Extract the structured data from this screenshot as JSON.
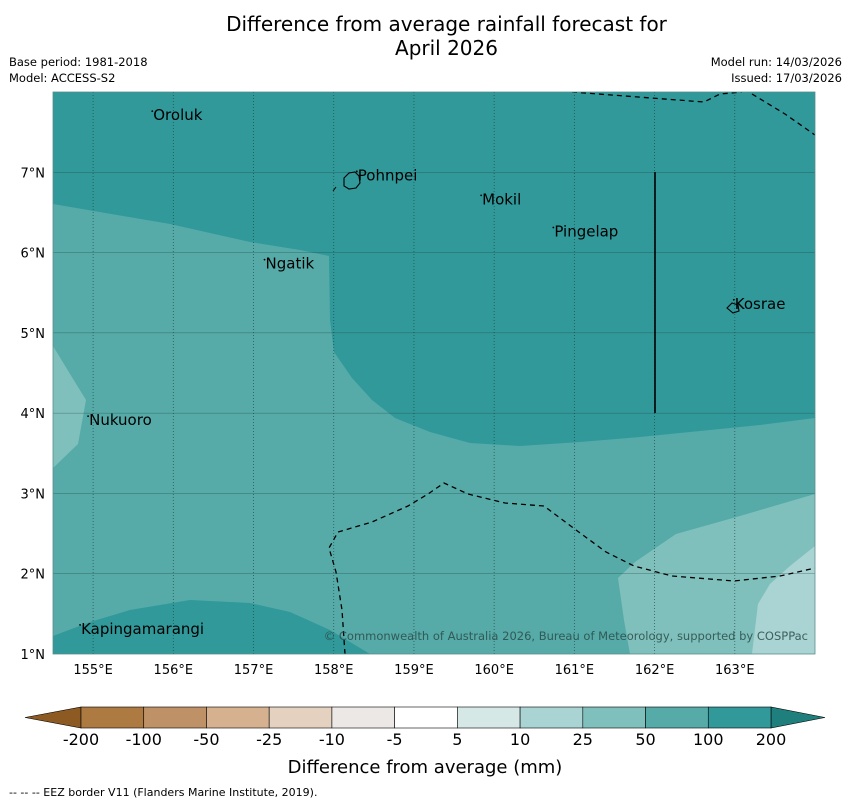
{
  "title": {
    "line1": "Difference from average rainfall forecast for",
    "line2": "April 2026"
  },
  "meta": {
    "base_period": "Base period: 1981-2018",
    "model": "Model: ACCESS-S2",
    "model_run": "Model run: 14/03/2026",
    "issued": "Issued: 17/03/2026"
  },
  "map": {
    "lon_range": [
      154.5,
      164.0
    ],
    "lat_range": [
      1.0,
      8.0
    ],
    "lon_ticks": [
      {
        "value": 155,
        "label": "155°E"
      },
      {
        "value": 156,
        "label": "156°E"
      },
      {
        "value": 157,
        "label": "157°E"
      },
      {
        "value": 158,
        "label": "158°E"
      },
      {
        "value": 159,
        "label": "159°E"
      },
      {
        "value": 160,
        "label": "160°E"
      },
      {
        "value": 161,
        "label": "161°E"
      },
      {
        "value": 162,
        "label": "162°E"
      },
      {
        "value": 163,
        "label": "163°E"
      }
    ],
    "lat_ticks": [
      {
        "value": 1,
        "label": "1°N"
      },
      {
        "value": 2,
        "label": "2°N"
      },
      {
        "value": 3,
        "label": "3°N"
      },
      {
        "value": 4,
        "label": "4°N"
      },
      {
        "value": 5,
        "label": "5°N"
      },
      {
        "value": 6,
        "label": "6°N"
      },
      {
        "value": 7,
        "label": "7°N"
      }
    ],
    "places": [
      {
        "name": "Oroluk",
        "lon": 155.75,
        "lat": 7.65
      },
      {
        "name": "Pohnpei",
        "lon": 158.3,
        "lat": 6.9
      },
      {
        "name": "Mokil",
        "lon": 159.85,
        "lat": 6.6
      },
      {
        "name": "Pingelap",
        "lon": 160.75,
        "lat": 6.2
      },
      {
        "name": "Ngatik",
        "lon": 157.15,
        "lat": 5.8
      },
      {
        "name": "Kosrae",
        "lon": 163.0,
        "lat": 5.3
      },
      {
        "name": "Nukuoro",
        "lon": 154.95,
        "lat": 3.85
      },
      {
        "name": "Kapingamarangi",
        "lon": 154.85,
        "lat": 1.25
      }
    ],
    "copyright": "© Commonwealth of Australia 2026, Bureau of Meteorology, supported by COSPPac"
  },
  "colorbar": {
    "ticks": [
      "-200",
      "-100",
      "-50",
      "-25",
      "-10",
      "-5",
      "5",
      "10",
      "25",
      "50",
      "100",
      "200"
    ],
    "colors": [
      "#ad7a41",
      "#be9166",
      "#d5b190",
      "#e4d1c0",
      "#ece8e6",
      "#ffffff",
      "#d5e8e6",
      "#aad4d3",
      "#80c0bc",
      "#56aba8",
      "#31999a"
    ],
    "extend_low_color": "#8c5a22",
    "extend_high_color": "#1f7f7c",
    "label": "Difference from average (mm)"
  },
  "footer": "--  --  -- EEZ border V11 (Flanders Marine Institute, 2019)."
}
